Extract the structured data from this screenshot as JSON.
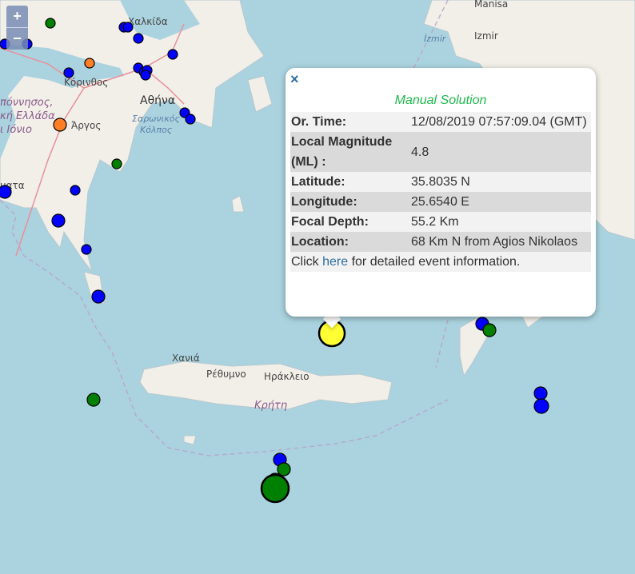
{
  "map": {
    "labels": {
      "chalkida": "Χαλκίδα",
      "korinthos": "Κόρινθος",
      "athina": "Αθήνα",
      "saronikos1": "Σαρωνικός",
      "saronikos2": "Κόλπος",
      "argos": "Άργος",
      "region1": "πόννησος,",
      "region2": "κή Ελλάδα",
      "region3": "ι Ιόνιο",
      "kalamata": "ματα",
      "chania": "Χανιά",
      "rethymno": "Ρέθυμνο",
      "irakleio": "Ηράκλειο",
      "kriti": "Κρήτη",
      "manisa": "Manisa",
      "izmir_gulf": "İzmir",
      "izmir": "Izmir"
    },
    "marker_colors": {
      "blue": "#0000ff",
      "green": "#008000",
      "orange": "#ff7f27",
      "yellow": "#ffff33"
    }
  },
  "zoom_controls": {
    "zoom_in": "+",
    "zoom_out": "−"
  },
  "popup": {
    "close": "×",
    "title": "Manual Solution",
    "rows": [
      {
        "label": "Or. Time:",
        "value": "12/08/2019 07:57:09.04 (GMT)"
      },
      {
        "label": "Local Magnitude (ML) :",
        "value": "4.8"
      },
      {
        "label": "Latitude:",
        "value": "35.8035 N"
      },
      {
        "label": "Longitude:",
        "value": "25.6540 E"
      },
      {
        "label": "Focal Depth:",
        "value": "55.2 Km"
      },
      {
        "label": "Location:",
        "value": "68 Km N from Agios Nikolaos"
      }
    ],
    "footer_pre": "Click ",
    "footer_link": "here",
    "footer_post": " for detailed event information."
  }
}
